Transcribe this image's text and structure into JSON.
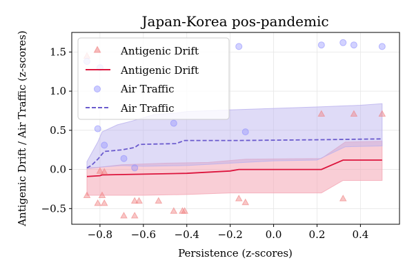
{
  "chart_data": {
    "type": "scatter",
    "title": "Japan-Korea pos-pandemic",
    "xlabel": "Persistence (z-scores)",
    "ylabel": "Antigenic Drift / Air Traffic (z-scores)",
    "xlim": [
      -0.93,
      0.58
    ],
    "ylim": [
      -0.7,
      1.75
    ],
    "xticks": [
      -0.8,
      -0.6,
      -0.4,
      -0.2,
      0.0,
      0.2,
      0.4
    ],
    "xtick_labels": [
      "−0.8",
      "−0.6",
      "−0.4",
      "−0.2",
      "0.0",
      "0.2",
      "0.4"
    ],
    "yticks": [
      -0.5,
      0.0,
      0.5,
      1.0,
      1.5
    ],
    "ytick_labels": [
      "−0.5",
      "0.0",
      "0.5",
      "1.0",
      "1.5"
    ],
    "grid": true,
    "legend_position": "top-left",
    "colors": {
      "drift": "#dc143c",
      "drift_marker": "#f08080",
      "drift_band": "#f4a6b4",
      "air": "#6a5acd",
      "air_marker": "#8f8fff",
      "air_band": "#b9b0ee"
    },
    "series": [
      {
        "name": "Antigenic Drift",
        "kind": "scatter",
        "marker": "triangle",
        "points": [
          [
            -0.86,
            -0.33
          ],
          [
            -0.86,
            1.45
          ],
          [
            -0.81,
            1.53
          ],
          [
            -0.81,
            -0.43
          ],
          [
            -0.8,
            -0.02
          ],
          [
            -0.79,
            -0.33
          ],
          [
            -0.78,
            -0.43
          ],
          [
            -0.78,
            -0.03
          ],
          [
            -0.69,
            -0.59
          ],
          [
            -0.64,
            -0.4
          ],
          [
            -0.64,
            -0.59
          ],
          [
            -0.62,
            -0.4
          ],
          [
            -0.53,
            -0.4
          ],
          [
            -0.46,
            -0.53
          ],
          [
            -0.42,
            -0.53
          ],
          [
            -0.41,
            -0.53
          ],
          [
            -0.16,
            -0.37
          ],
          [
            -0.13,
            -0.42
          ],
          [
            0.22,
            0.71
          ],
          [
            0.32,
            -0.37
          ],
          [
            0.37,
            0.71
          ],
          [
            0.5,
            0.71
          ]
        ]
      },
      {
        "name": "Antigenic Drift",
        "kind": "line",
        "dash": "solid",
        "points": [
          [
            -0.86,
            -0.09
          ],
          [
            -0.8,
            -0.08
          ],
          [
            -0.79,
            -0.07
          ],
          [
            -0.6,
            -0.06
          ],
          [
            -0.4,
            -0.05
          ],
          [
            -0.2,
            -0.02
          ],
          [
            -0.16,
            0.0
          ],
          [
            0.22,
            0.0
          ],
          [
            0.32,
            0.12
          ],
          [
            0.5,
            0.12
          ]
        ],
        "band_upper": [
          [
            -0.86,
            0.02
          ],
          [
            -0.8,
            0.03
          ],
          [
            -0.7,
            0.06
          ],
          [
            -0.5,
            0.08
          ],
          [
            -0.3,
            0.09
          ],
          [
            -0.13,
            0.13
          ],
          [
            0.22,
            0.14
          ],
          [
            0.33,
            0.35
          ],
          [
            0.5,
            0.36
          ]
        ],
        "band_lower": [
          [
            -0.86,
            -0.33
          ],
          [
            -0.6,
            -0.33
          ],
          [
            -0.4,
            -0.32
          ],
          [
            -0.2,
            -0.3
          ],
          [
            0.22,
            -0.3
          ],
          [
            0.32,
            -0.14
          ],
          [
            0.5,
            -0.14
          ]
        ]
      },
      {
        "name": "Air Traffic",
        "kind": "scatter",
        "marker": "circle",
        "points": [
          [
            -0.86,
            1.38
          ],
          [
            -0.81,
            0.52
          ],
          [
            -0.8,
            1.3
          ],
          [
            -0.78,
            0.31
          ],
          [
            -0.69,
            0.14
          ],
          [
            -0.64,
            0.02
          ],
          [
            -0.46,
            0.59
          ],
          [
            -0.16,
            1.57
          ],
          [
            -0.13,
            0.48
          ],
          [
            0.22,
            1.59
          ],
          [
            0.32,
            1.62
          ],
          [
            0.37,
            1.59
          ],
          [
            0.5,
            1.57
          ]
        ]
      },
      {
        "name": "Air Traffic",
        "kind": "line",
        "dash": "dashed",
        "points": [
          [
            -0.86,
            0.02
          ],
          [
            -0.84,
            0.05
          ],
          [
            -0.81,
            0.13
          ],
          [
            -0.78,
            0.23
          ],
          [
            -0.7,
            0.25
          ],
          [
            -0.64,
            0.28
          ],
          [
            -0.62,
            0.32
          ],
          [
            -0.45,
            0.33
          ],
          [
            -0.41,
            0.37
          ],
          [
            -0.16,
            0.37
          ],
          [
            0.22,
            0.38
          ],
          [
            0.5,
            0.39
          ]
        ],
        "band_upper": [
          [
            -0.86,
            0.1
          ],
          [
            -0.81,
            0.35
          ],
          [
            -0.79,
            0.48
          ],
          [
            -0.72,
            0.57
          ],
          [
            -0.65,
            0.62
          ],
          [
            -0.55,
            0.7
          ],
          [
            -0.45,
            0.72
          ],
          [
            -0.4,
            0.74
          ],
          [
            -0.2,
            0.76
          ],
          [
            0.0,
            0.78
          ],
          [
            0.22,
            0.8
          ],
          [
            0.4,
            0.82
          ],
          [
            0.5,
            0.84
          ]
        ],
        "band_lower": [
          [
            -0.86,
            0.01
          ],
          [
            -0.8,
            0.03
          ],
          [
            -0.7,
            0.05
          ],
          [
            -0.6,
            0.04
          ],
          [
            -0.4,
            0.05
          ],
          [
            -0.2,
            0.08
          ],
          [
            0.0,
            0.11
          ],
          [
            0.2,
            0.12
          ],
          [
            0.33,
            0.29
          ],
          [
            0.5,
            0.3
          ]
        ]
      }
    ]
  }
}
